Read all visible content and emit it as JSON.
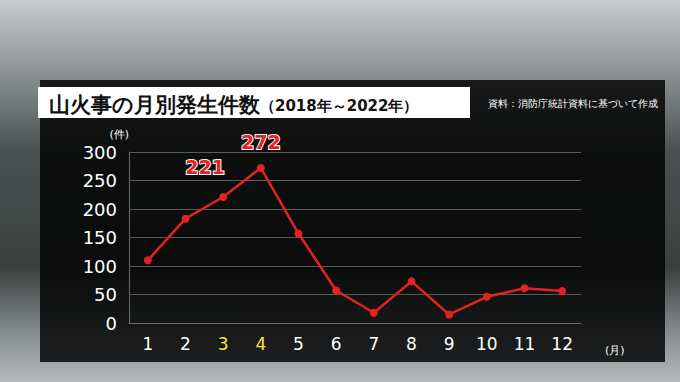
{
  "chart_data": {
    "type": "line",
    "title": "山火事の月別発生件数",
    "subtitle": "（2018年～2022年）",
    "source": "資料：消防庁統計資料に基づいて作成",
    "y_label": "(件)",
    "x_label": "(月)",
    "categories": [
      "1",
      "2",
      "3",
      "4",
      "5",
      "6",
      "7",
      "8",
      "9",
      "10",
      "11",
      "12"
    ],
    "values": [
      110,
      183,
      221,
      272,
      157,
      57,
      18,
      73,
      15,
      46,
      61,
      56
    ],
    "value_labels": [
      null,
      null,
      "221",
      "272",
      null,
      null,
      null,
      null,
      null,
      null,
      null,
      null
    ],
    "data_labels": true,
    "color": "#e32222",
    "marker": "circle",
    "ylim": [
      0,
      300
    ],
    "yticks": [
      0,
      50,
      100,
      150,
      200,
      250,
      300
    ],
    "grid": true
  }
}
